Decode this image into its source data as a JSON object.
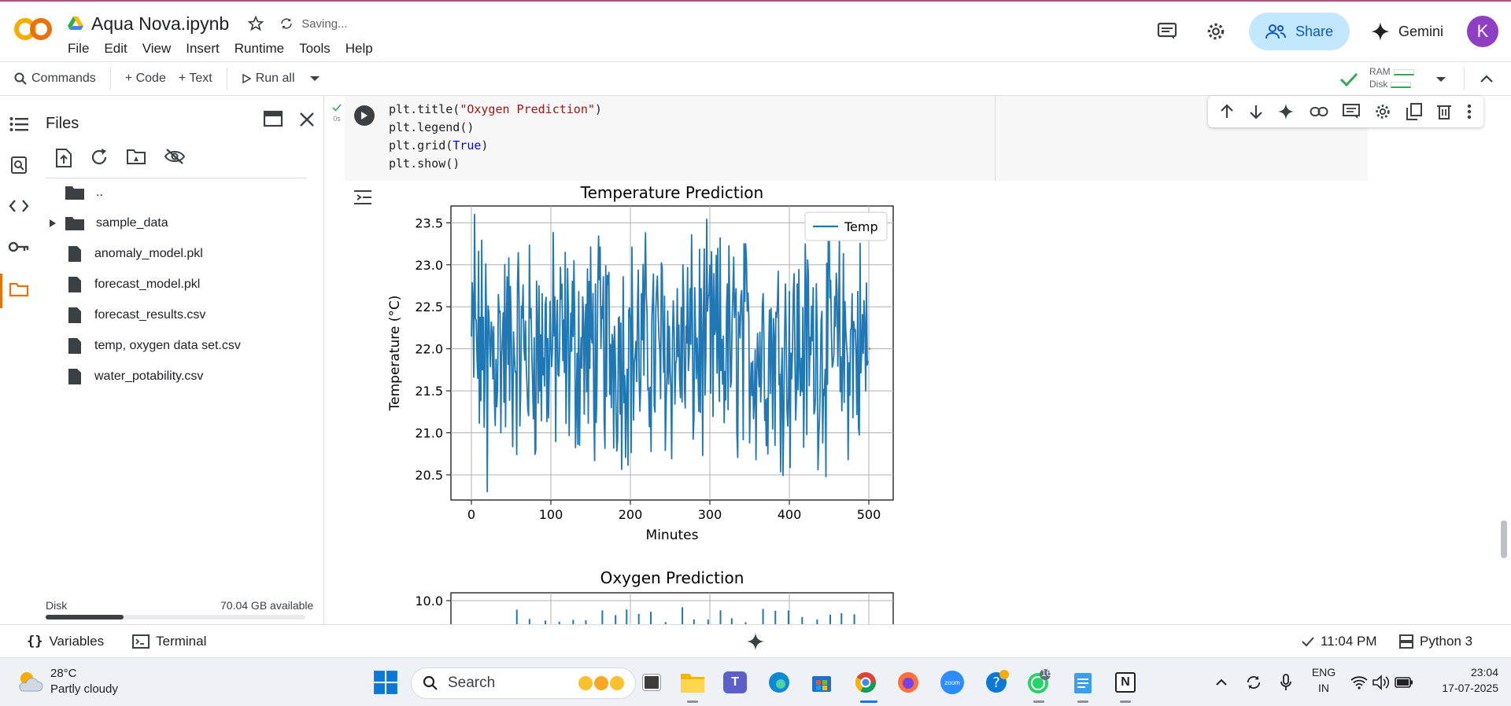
{
  "header": {
    "title": "Aqua Nova.ipynb",
    "saving": "Saving...",
    "menu": [
      "File",
      "Edit",
      "View",
      "Insert",
      "Runtime",
      "Tools",
      "Help"
    ],
    "share_label": "Share",
    "gemini_label": "Gemini",
    "avatar_letter": "K"
  },
  "toolbar": {
    "commands": "Commands",
    "code": "+ Code",
    "text": "+ Text",
    "run_all": "Run all",
    "ram": "RAM",
    "disk": "Disk"
  },
  "files": {
    "title": "Files",
    "items": [
      {
        "name": "..",
        "type": "folder-up"
      },
      {
        "name": "sample_data",
        "type": "folder"
      },
      {
        "name": "anomaly_model.pkl",
        "type": "file"
      },
      {
        "name": "forecast_model.pkl",
        "type": "file"
      },
      {
        "name": "forecast_results.csv",
        "type": "file"
      },
      {
        "name": "temp, oxygen data set.csv",
        "type": "file"
      },
      {
        "name": "water_potability.csv",
        "type": "file"
      }
    ],
    "disk_label": "Disk",
    "disk_available": "70.04 GB available",
    "disk_used_fraction": 0.3
  },
  "cell": {
    "exec_time": "0s",
    "code_lines": [
      {
        "pre": "plt.title(",
        "str": "\"Oxygen Prediction\"",
        "post": ")"
      },
      {
        "pre": "plt.legend",
        "str": "",
        "post": "()"
      },
      {
        "pre": "plt.grid(",
        "kw": "True",
        "post": ")"
      },
      {
        "pre": "plt.show",
        "str": "",
        "post": "()"
      }
    ]
  },
  "chart_data": [
    {
      "type": "line",
      "title": "Temperature Prediction",
      "xlabel": "Minutes",
      "ylabel": "Temperature (°C)",
      "xlim": [
        0,
        500
      ],
      "ylim": [
        20.2,
        23.7
      ],
      "xticks": [
        "0",
        "100",
        "200",
        "300",
        "400",
        "500"
      ],
      "yticks": [
        "20.5",
        "21.0",
        "21.5",
        "22.0",
        "22.5",
        "23.0",
        "23.5"
      ],
      "grid": true,
      "legend_position": "top-right",
      "series": [
        {
          "name": "Temp",
          "color": "#1f77b4",
          "n_points": 500,
          "min": 20.3,
          "max": 23.6,
          "mean": 22.0
        }
      ]
    },
    {
      "type": "line",
      "title": "Oxygen Prediction",
      "xlim": [
        0,
        500
      ],
      "yticks": [
        "10.0"
      ],
      "grid": true
    }
  ],
  "status": {
    "variables": "Variables",
    "terminal": "Terminal",
    "time": "11:04 PM",
    "runtime": "Python 3"
  },
  "taskbar": {
    "temp": "28°C",
    "condition": "Partly cloudy",
    "search": "Search",
    "whatsapp_badge": "16",
    "lang1": "ENG",
    "lang2": "IN",
    "clock": "23:04",
    "date": "17-07-2025"
  },
  "colors": {
    "accent": "#f9ab00",
    "share_bg": "#c2e7ff",
    "plot_line": "#1f77b4"
  }
}
